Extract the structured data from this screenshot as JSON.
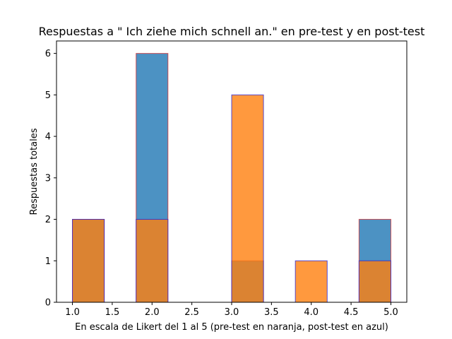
{
  "chart_data": {
    "type": "bar",
    "title": "Respuestas a \" Ich ziehe mich schnell an.\" en pre-test y en post-test",
    "xlabel": "En escala de Likert del 1 al 5 (pre-test en naranja, post-test en azul)",
    "ylabel": "Respuestas totales",
    "xlim": [
      0.8,
      5.2
    ],
    "ylim": [
      0,
      6.3
    ],
    "xticks": [
      1.0,
      1.5,
      2.0,
      2.5,
      3.0,
      3.5,
      4.0,
      4.5,
      5.0
    ],
    "xtick_labels": [
      "1.0",
      "1.5",
      "2.0",
      "2.5",
      "3.0",
      "3.5",
      "4.0",
      "4.5",
      "5.0"
    ],
    "yticks": [
      0,
      1,
      2,
      3,
      4,
      5,
      6
    ],
    "ytick_labels": [
      "0",
      "1",
      "2",
      "3",
      "4",
      "5",
      "6"
    ],
    "bin_edges": [
      1.0,
      1.4,
      1.8,
      2.2,
      2.6,
      3.0,
      3.4,
      3.8,
      4.2,
      4.6,
      5.0
    ],
    "series": [
      {
        "values": [
          2,
          0,
          6,
          0,
          0,
          1,
          0,
          0,
          0,
          2
        ],
        "color": "#1f77b4",
        "edgecolor": "#d62728"
      },
      {
        "values": [
          2,
          0,
          2,
          0,
          0,
          5,
          0,
          1,
          0,
          1
        ],
        "color": "#ff7f0e",
        "edgecolor": "#1f1fdf"
      }
    ],
    "grid": false
  }
}
